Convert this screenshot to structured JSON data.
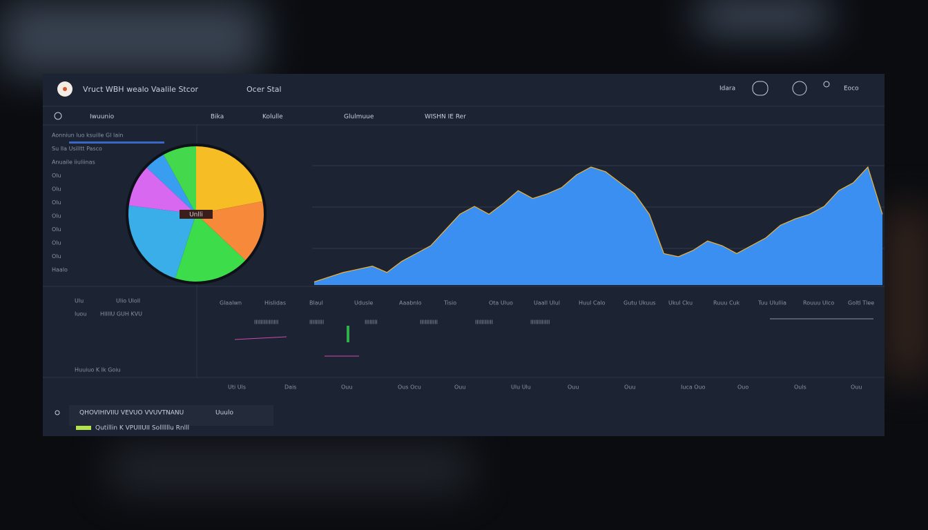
{
  "header": {
    "title": "Vruct  WBH wealo Vaalile Stcor",
    "subtitle": "Ocer Stal",
    "user": "Idara",
    "account": "Eoco"
  },
  "toolbar": [
    "Iwuunio",
    "Bika",
    "Kolulle",
    "Glulmuue",
    "WISHN IE Rer"
  ],
  "sidebar": [
    "Aonniun luo ksuille Gl lain",
    "Su lla Usilltt Pasco",
    "Anuaile iiuliinas",
    "Olu",
    "Olu",
    "Olu",
    "Olu",
    "Olu",
    "Olu",
    "Olu",
    "Haalo"
  ],
  "pie": {
    "label": "Unlli",
    "values": [
      22,
      15,
      18,
      22,
      10,
      5,
      8
    ],
    "colors": [
      "#f7bd25",
      "#f78a3a",
      "#3ddc4a",
      "#3aaee8",
      "#d868f0",
      "#3a9ef0",
      "#44d84c"
    ]
  },
  "area": {
    "values": [
      2,
      5,
      8,
      10,
      12,
      8,
      15,
      20,
      25,
      35,
      45,
      50,
      45,
      52,
      60,
      55,
      58,
      62,
      70,
      75,
      72,
      65,
      58,
      45,
      20,
      18,
      22,
      28,
      25,
      20,
      25,
      30,
      38,
      42,
      45,
      50,
      60,
      65,
      75,
      45
    ],
    "color": "#3b8ff0",
    "line_color": "#f2b233",
    "ylim": [
      0,
      100
    ]
  },
  "left_panel": [
    "Ulu",
    "Ulio Uloll",
    "Iuou",
    "HIIIIU GUH KVU",
    "Huuiuo K Ik Goiu"
  ],
  "table": {
    "columns": [
      "Glaalwn",
      "Hislidas",
      "Blaul",
      "Udusle",
      "Aaabnlo",
      "Tisio",
      "Ota Uluo",
      "Uaall Ulul",
      "Huul Calo",
      "Gutu Ukuus",
      "Ukul Cku",
      "Ruuu Cuk",
      "Tuu Ulullia",
      "Rouuu Ulco",
      "Goltl Tlee"
    ],
    "row": [
      "IIIIIIIIIIIIIII",
      "IIIIIIIII",
      "IIIIIIII",
      "IIIIIIIIIII",
      "IIIIIIIIIII",
      "IIIIIIIIIIII"
    ]
  },
  "footer_ticks": [
    "Uti Uls",
    "Dais",
    "Ouu",
    "Ous Ocu",
    "Ouu",
    "Ulu Ulu",
    "Ouu",
    "Ouu",
    "Iuca Ouo",
    "Ouo",
    "Ouls",
    "Ouu"
  ],
  "status": [
    "QHOVIHIVIIU VEVUO VVUVTNANU",
    "Uuulo",
    "Qutillin K VPUIIUII Sollllllu Rnlll"
  ]
}
